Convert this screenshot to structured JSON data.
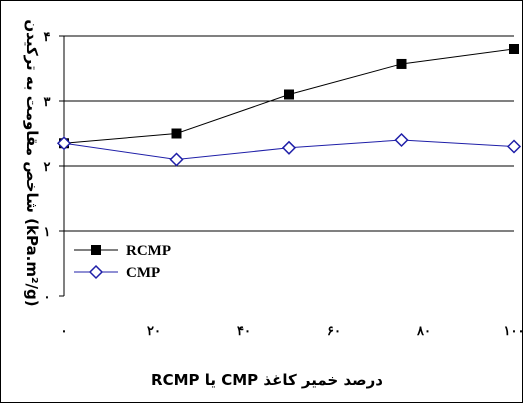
{
  "chart_data": {
    "type": "line",
    "x": [
      0,
      25,
      50,
      75,
      100
    ],
    "x_tick_labels": [
      "۰",
      "۲۰",
      "۴۰",
      "۶۰",
      "۸۰",
      "۱۰۰"
    ],
    "x_tick_values": [
      0,
      20,
      40,
      60,
      80,
      100
    ],
    "y_tick_labels": [
      "۰",
      "۱",
      "۲",
      "۳",
      "۴"
    ],
    "y_tick_values": [
      0,
      1,
      2,
      3,
      4
    ],
    "xlim": [
      0,
      100
    ],
    "ylim": [
      0,
      4
    ],
    "xlabel": "درصد خمیر کاغذ CMP یا RCMP",
    "ylabel": "(kPa.m²/g) شاخص مقاومت به ترکیدن",
    "grid": "horizontal",
    "legend_position": "bottom-left",
    "series": [
      {
        "name": "RCMP",
        "marker": "filled-square",
        "color": "#000000",
        "values": [
          2.35,
          2.5,
          3.1,
          3.57,
          3.8
        ]
      },
      {
        "name": "CMP",
        "marker": "open-diamond",
        "color": "#1f1fa8",
        "values": [
          2.35,
          2.1,
          2.28,
          2.4,
          2.3
        ]
      }
    ]
  }
}
